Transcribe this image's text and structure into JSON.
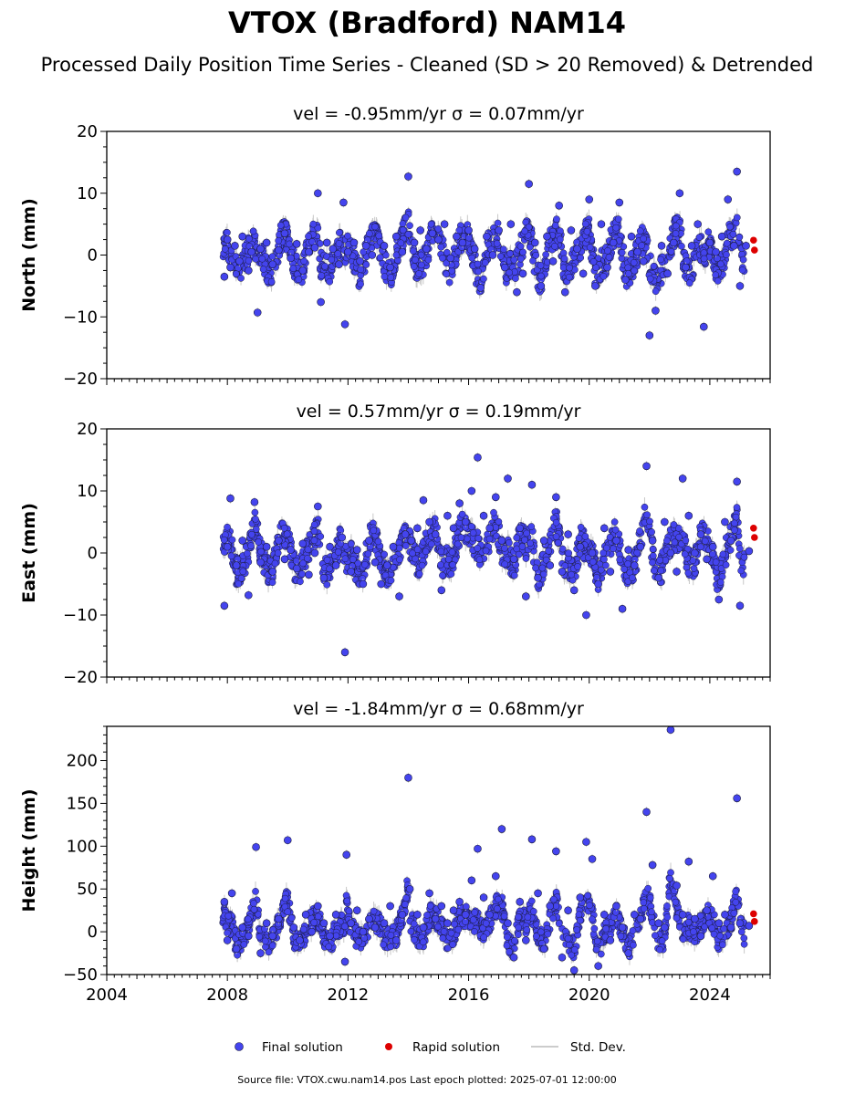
{
  "figure": {
    "title": "VTOX (Bradford) NAM14",
    "subtitle": "Processed Daily Position Time Series - Cleaned (SD > 20 Removed) & Detrended",
    "footer": "Source file: VTOX.cwu.nam14.pos  Last epoch plotted: 2025-07-01 12:00:00",
    "legend": [
      {
        "label": "Final solution",
        "marker": "circle",
        "color": "#4444ee"
      },
      {
        "label": "Rapid solution",
        "marker": "circle",
        "color": "#dd0000"
      },
      {
        "label": "Std. Dev.",
        "marker": "line",
        "color": "#cccccc"
      }
    ],
    "colors": {
      "final": "#4444ee",
      "rapid": "#dd0000",
      "stddev": "#c8c8c8",
      "edge": "#1a1a3a"
    }
  },
  "chart_data": [
    {
      "type": "scatter",
      "title": "vel = -0.95mm/yr   σ = 0.07mm/yr",
      "ylabel": "North (mm)",
      "xlim": [
        2004,
        2026
      ],
      "ylim": [
        -20,
        20
      ],
      "yticks": [
        -20,
        -10,
        0,
        10,
        20
      ],
      "xticks": [
        2004,
        2008,
        2012,
        2016,
        2020,
        2024
      ],
      "show_xtick_labels": false,
      "series": [
        {
          "name": "Final solution",
          "x": [
            2007.9,
            2008.0,
            2008.1,
            2008.25,
            2008.4,
            2008.5,
            2008.7,
            2008.8,
            2009.0,
            2009.1,
            2009.3,
            2009.5,
            2009.7,
            2009.9,
            2010.1,
            2010.3,
            2010.5,
            2010.7,
            2010.9,
            2011.0,
            2011.1,
            2011.3,
            2011.5,
            2011.7,
            2011.85,
            2011.9,
            2012.0,
            2012.2,
            2012.4,
            2012.6,
            2012.8,
            2013.2,
            2013.4,
            2013.6,
            2013.8,
            2014.0,
            2014.2,
            2014.4,
            2014.6,
            2014.8,
            2015.0,
            2015.2,
            2015.4,
            2015.6,
            2015.8,
            2016.0,
            2016.2,
            2016.4,
            2016.6,
            2016.8,
            2017.0,
            2017.2,
            2017.4,
            2017.6,
            2017.8,
            2018.0,
            2018.2,
            2018.4,
            2018.6,
            2018.8,
            2019.0,
            2019.2,
            2019.4,
            2019.6,
            2019.8,
            2020.0,
            2020.2,
            2020.4,
            2020.6,
            2020.8,
            2021.0,
            2021.2,
            2021.4,
            2021.6,
            2021.8,
            2022.0,
            2022.2,
            2022.4,
            2022.6,
            2022.8,
            2023.0,
            2023.2,
            2023.4,
            2023.6,
            2023.8,
            2024.0,
            2024.2,
            2024.4,
            2024.6,
            2024.8,
            2024.9,
            2025.0,
            2025.2
          ],
          "y": [
            -3.5,
            2.5,
            -2.0,
            1.5,
            -1.0,
            3.0,
            -2.5,
            0.5,
            -9.3,
            1.0,
            2.0,
            -1.5,
            0.8,
            3.5,
            -0.5,
            1.8,
            -2.5,
            0.5,
            1.2,
            10.0,
            -7.6,
            2.0,
            1.0,
            -1.5,
            8.5,
            -11.2,
            0.5,
            2.0,
            -1.0,
            1.5,
            0.0,
            1.5,
            -2.0,
            3.0,
            0.5,
            12.7,
            2.0,
            4.0,
            1.0,
            3.5,
            2.5,
            5.0,
            -0.5,
            3.0,
            2.0,
            4.0,
            1.0,
            -5.3,
            3.0,
            0.0,
            4.0,
            -2.0,
            5.0,
            -6.0,
            -3.0,
            11.5,
            2.0,
            -5.0,
            3.0,
            -1.0,
            8.0,
            -6.0,
            4.0,
            1.0,
            -3.0,
            9.0,
            -5.0,
            5.0,
            -2.0,
            2.0,
            8.5,
            -4.0,
            3.0,
            0.5,
            -1.0,
            -13.0,
            -9.0,
            1.5,
            -3.0,
            2.0,
            10.0,
            -2.0,
            1.5,
            5.0,
            -11.6,
            2.0,
            0.5,
            3.0,
            9.0,
            1.5,
            13.5,
            -5.0,
            1.5
          ]
        },
        {
          "name": "Rapid solution",
          "x": [
            2025.45,
            2025.48
          ],
          "y": [
            2.4,
            0.8
          ]
        }
      ]
    },
    {
      "type": "scatter",
      "title": "vel = 0.57mm/yr   σ = 0.19mm/yr",
      "ylabel": "East (mm)",
      "xlim": [
        2004,
        2026
      ],
      "ylim": [
        -20,
        20
      ],
      "yticks": [
        -20,
        -10,
        0,
        10,
        20
      ],
      "xticks": [
        2004,
        2008,
        2012,
        2016,
        2020,
        2024
      ],
      "show_xtick_labels": false,
      "series": [
        {
          "name": "Final solution",
          "x": [
            2007.9,
            2008.0,
            2008.1,
            2008.3,
            2008.5,
            2008.7,
            2008.9,
            2009.1,
            2009.3,
            2009.5,
            2009.7,
            2009.9,
            2010.1,
            2010.3,
            2010.5,
            2010.7,
            2010.9,
            2011.0,
            2011.2,
            2011.4,
            2011.6,
            2011.8,
            2011.9,
            2012.1,
            2012.3,
            2012.5,
            2012.7,
            2012.9,
            2013.1,
            2013.3,
            2013.5,
            2013.7,
            2013.9,
            2014.1,
            2014.3,
            2014.5,
            2014.7,
            2014.9,
            2015.1,
            2015.3,
            2015.5,
            2015.7,
            2015.9,
            2016.1,
            2016.3,
            2016.5,
            2016.7,
            2016.9,
            2017.1,
            2017.3,
            2017.5,
            2017.7,
            2017.9,
            2018.1,
            2018.3,
            2018.5,
            2018.7,
            2018.9,
            2019.1,
            2019.3,
            2019.5,
            2019.7,
            2019.9,
            2020.1,
            2020.3,
            2020.5,
            2020.7,
            2020.9,
            2021.1,
            2021.3,
            2021.5,
            2021.7,
            2021.9,
            2022.1,
            2022.3,
            2022.5,
            2022.7,
            2022.9,
            2023.1,
            2023.3,
            2023.5,
            2023.7,
            2023.9,
            2024.1,
            2024.3,
            2024.5,
            2024.7,
            2024.9,
            2025.0,
            2025.3
          ],
          "y": [
            -8.5,
            1.0,
            8.8,
            -2.0,
            2.0,
            -6.8,
            8.2,
            -1.5,
            1.0,
            -3.0,
            2.0,
            -1.0,
            0.5,
            -2.5,
            1.5,
            -3.5,
            0.0,
            7.5,
            -4.0,
            1.0,
            -2.0,
            2.5,
            -16.0,
            -3.0,
            0.5,
            -5.0,
            2.0,
            -1.5,
            -5.0,
            -2.0,
            1.0,
            -7.0,
            3.0,
            2.0,
            4.0,
            8.5,
            5.0,
            3.0,
            -6.0,
            6.0,
            4.0,
            8.0,
            5.0,
            10.0,
            15.4,
            6.0,
            4.0,
            9.0,
            2.0,
            12.0,
            -1.0,
            4.0,
            -7.0,
            11.0,
            -4.0,
            2.0,
            -2.0,
            9.0,
            -3.0,
            3.0,
            -6.0,
            1.0,
            -10.0,
            0.0,
            -5.0,
            4.0,
            -3.0,
            2.0,
            -9.0,
            0.5,
            -2.0,
            1.0,
            14.0,
            2.0,
            -4.0,
            5.0,
            0.0,
            -3.0,
            12.0,
            6.0,
            0.0,
            3.0,
            -1.0,
            1.0,
            -7.5,
            5.0,
            2.0,
            11.5,
            -8.5,
            0.3
          ]
        },
        {
          "name": "Rapid solution",
          "x": [
            2025.45,
            2025.48
          ],
          "y": [
            4.0,
            2.5
          ]
        }
      ]
    },
    {
      "type": "scatter",
      "title": "vel = -1.84mm/yr   σ = 0.68mm/yr",
      "ylabel": "Height (mm)",
      "xlim": [
        2004,
        2026
      ],
      "ylim": [
        -50,
        240
      ],
      "yticks": [
        -50,
        0,
        50,
        100,
        150,
        200
      ],
      "xticks": [
        2004,
        2008,
        2012,
        2016,
        2020,
        2024
      ],
      "xtick_labels": [
        "2004",
        "2008",
        "2012",
        "2016",
        "2020",
        "2024"
      ],
      "show_xtick_labels": true,
      "series": [
        {
          "name": "Final solution",
          "x": [
            2007.9,
            2008.0,
            2008.15,
            2008.3,
            2008.5,
            2008.7,
            2008.95,
            2009.1,
            2009.3,
            2009.5,
            2009.7,
            2010.0,
            2010.2,
            2010.4,
            2010.6,
            2010.8,
            2011.0,
            2011.2,
            2011.4,
            2011.6,
            2011.9,
            2011.95,
            2012.1,
            2012.3,
            2012.5,
            2012.7,
            2012.9,
            2013.2,
            2013.4,
            2013.6,
            2013.8,
            2014.0,
            2014.05,
            2014.3,
            2014.5,
            2014.7,
            2014.9,
            2015.1,
            2015.3,
            2015.5,
            2015.7,
            2015.9,
            2016.1,
            2016.3,
            2016.5,
            2016.7,
            2016.9,
            2017.1,
            2017.3,
            2017.5,
            2017.7,
            2017.9,
            2018.1,
            2018.3,
            2018.5,
            2018.7,
            2018.9,
            2019.1,
            2019.3,
            2019.5,
            2019.7,
            2019.9,
            2020.1,
            2020.3,
            2020.5,
            2020.7,
            2020.9,
            2021.1,
            2021.3,
            2021.5,
            2021.7,
            2021.9,
            2022.1,
            2022.3,
            2022.5,
            2022.7,
            2022.9,
            2023.1,
            2023.3,
            2023.5,
            2023.7,
            2023.9,
            2024.1,
            2024.3,
            2024.5,
            2024.7,
            2024.9,
            2025.0,
            2025.3
          ],
          "y": [
            35.0,
            -10.0,
            45.0,
            -20.0,
            5.0,
            -5.0,
            99.0,
            -25.0,
            10.0,
            -5.0,
            15.0,
            107.0,
            5.0,
            -10.0,
            20.0,
            0.0,
            30.0,
            10.0,
            -5.0,
            20.0,
            -35.0,
            90.0,
            10.0,
            25.0,
            0.0,
            15.0,
            5.0,
            10.0,
            30.0,
            -10.0,
            20.0,
            180.0,
            50.0,
            20.0,
            5.0,
            45.0,
            15.0,
            30.0,
            10.0,
            25.0,
            35.0,
            20.0,
            60.0,
            97.0,
            40.0,
            20.0,
            65.0,
            120.0,
            10.0,
            -30.0,
            35.0,
            -10.0,
            108.0,
            45.0,
            -20.0,
            30.0,
            94.0,
            -30.0,
            25.0,
            -45.0,
            40.0,
            105.0,
            85.0,
            -40.0,
            20.0,
            -10.0,
            30.0,
            5.0,
            -25.0,
            20.0,
            15.0,
            140.0,
            78.0,
            10.0,
            5.0,
            236.0,
            54.0,
            20.0,
            82.0,
            15.0,
            -5.0,
            25.0,
            65.0,
            10.0,
            20.0,
            5.0,
            156.0,
            10.0,
            7.0
          ]
        },
        {
          "name": "Rapid solution",
          "x": [
            2025.45,
            2025.48
          ],
          "y": [
            21.0,
            12.0
          ]
        }
      ]
    }
  ]
}
